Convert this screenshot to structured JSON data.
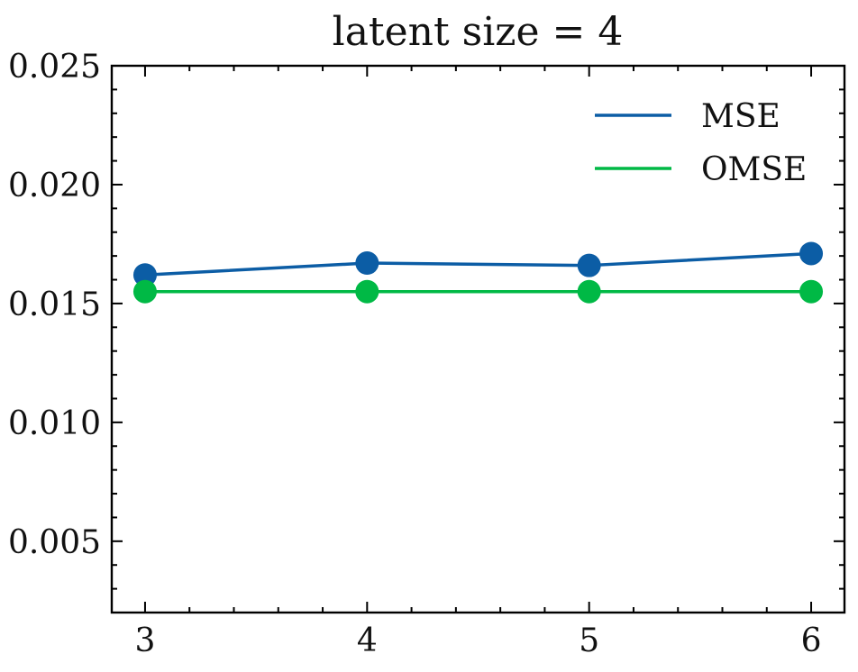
{
  "chart_data": {
    "type": "line",
    "title": "latent size = 4",
    "xlabel": "",
    "ylabel": "",
    "x": [
      3,
      4,
      5,
      6
    ],
    "xticks": [
      3,
      4,
      5,
      6
    ],
    "xtick_labels": [
      "3",
      "4",
      "5",
      "6"
    ],
    "xlim": [
      2.85,
      6.15
    ],
    "ylim": [
      0.002,
      0.025
    ],
    "yticks": [
      0.005,
      0.01,
      0.015,
      0.02,
      0.025
    ],
    "ytick_labels": [
      "0.005",
      "0.010",
      "0.015",
      "0.020",
      "0.025"
    ],
    "grid": false,
    "legend_position": "top-right",
    "series": [
      {
        "name": "MSE",
        "color": "#0C5DA5",
        "values": [
          0.0162,
          0.0167,
          0.0166,
          0.0171
        ]
      },
      {
        "name": "OMSE",
        "color": "#00B945",
        "values": [
          0.0155,
          0.0155,
          0.0155,
          0.0155
        ]
      }
    ]
  }
}
